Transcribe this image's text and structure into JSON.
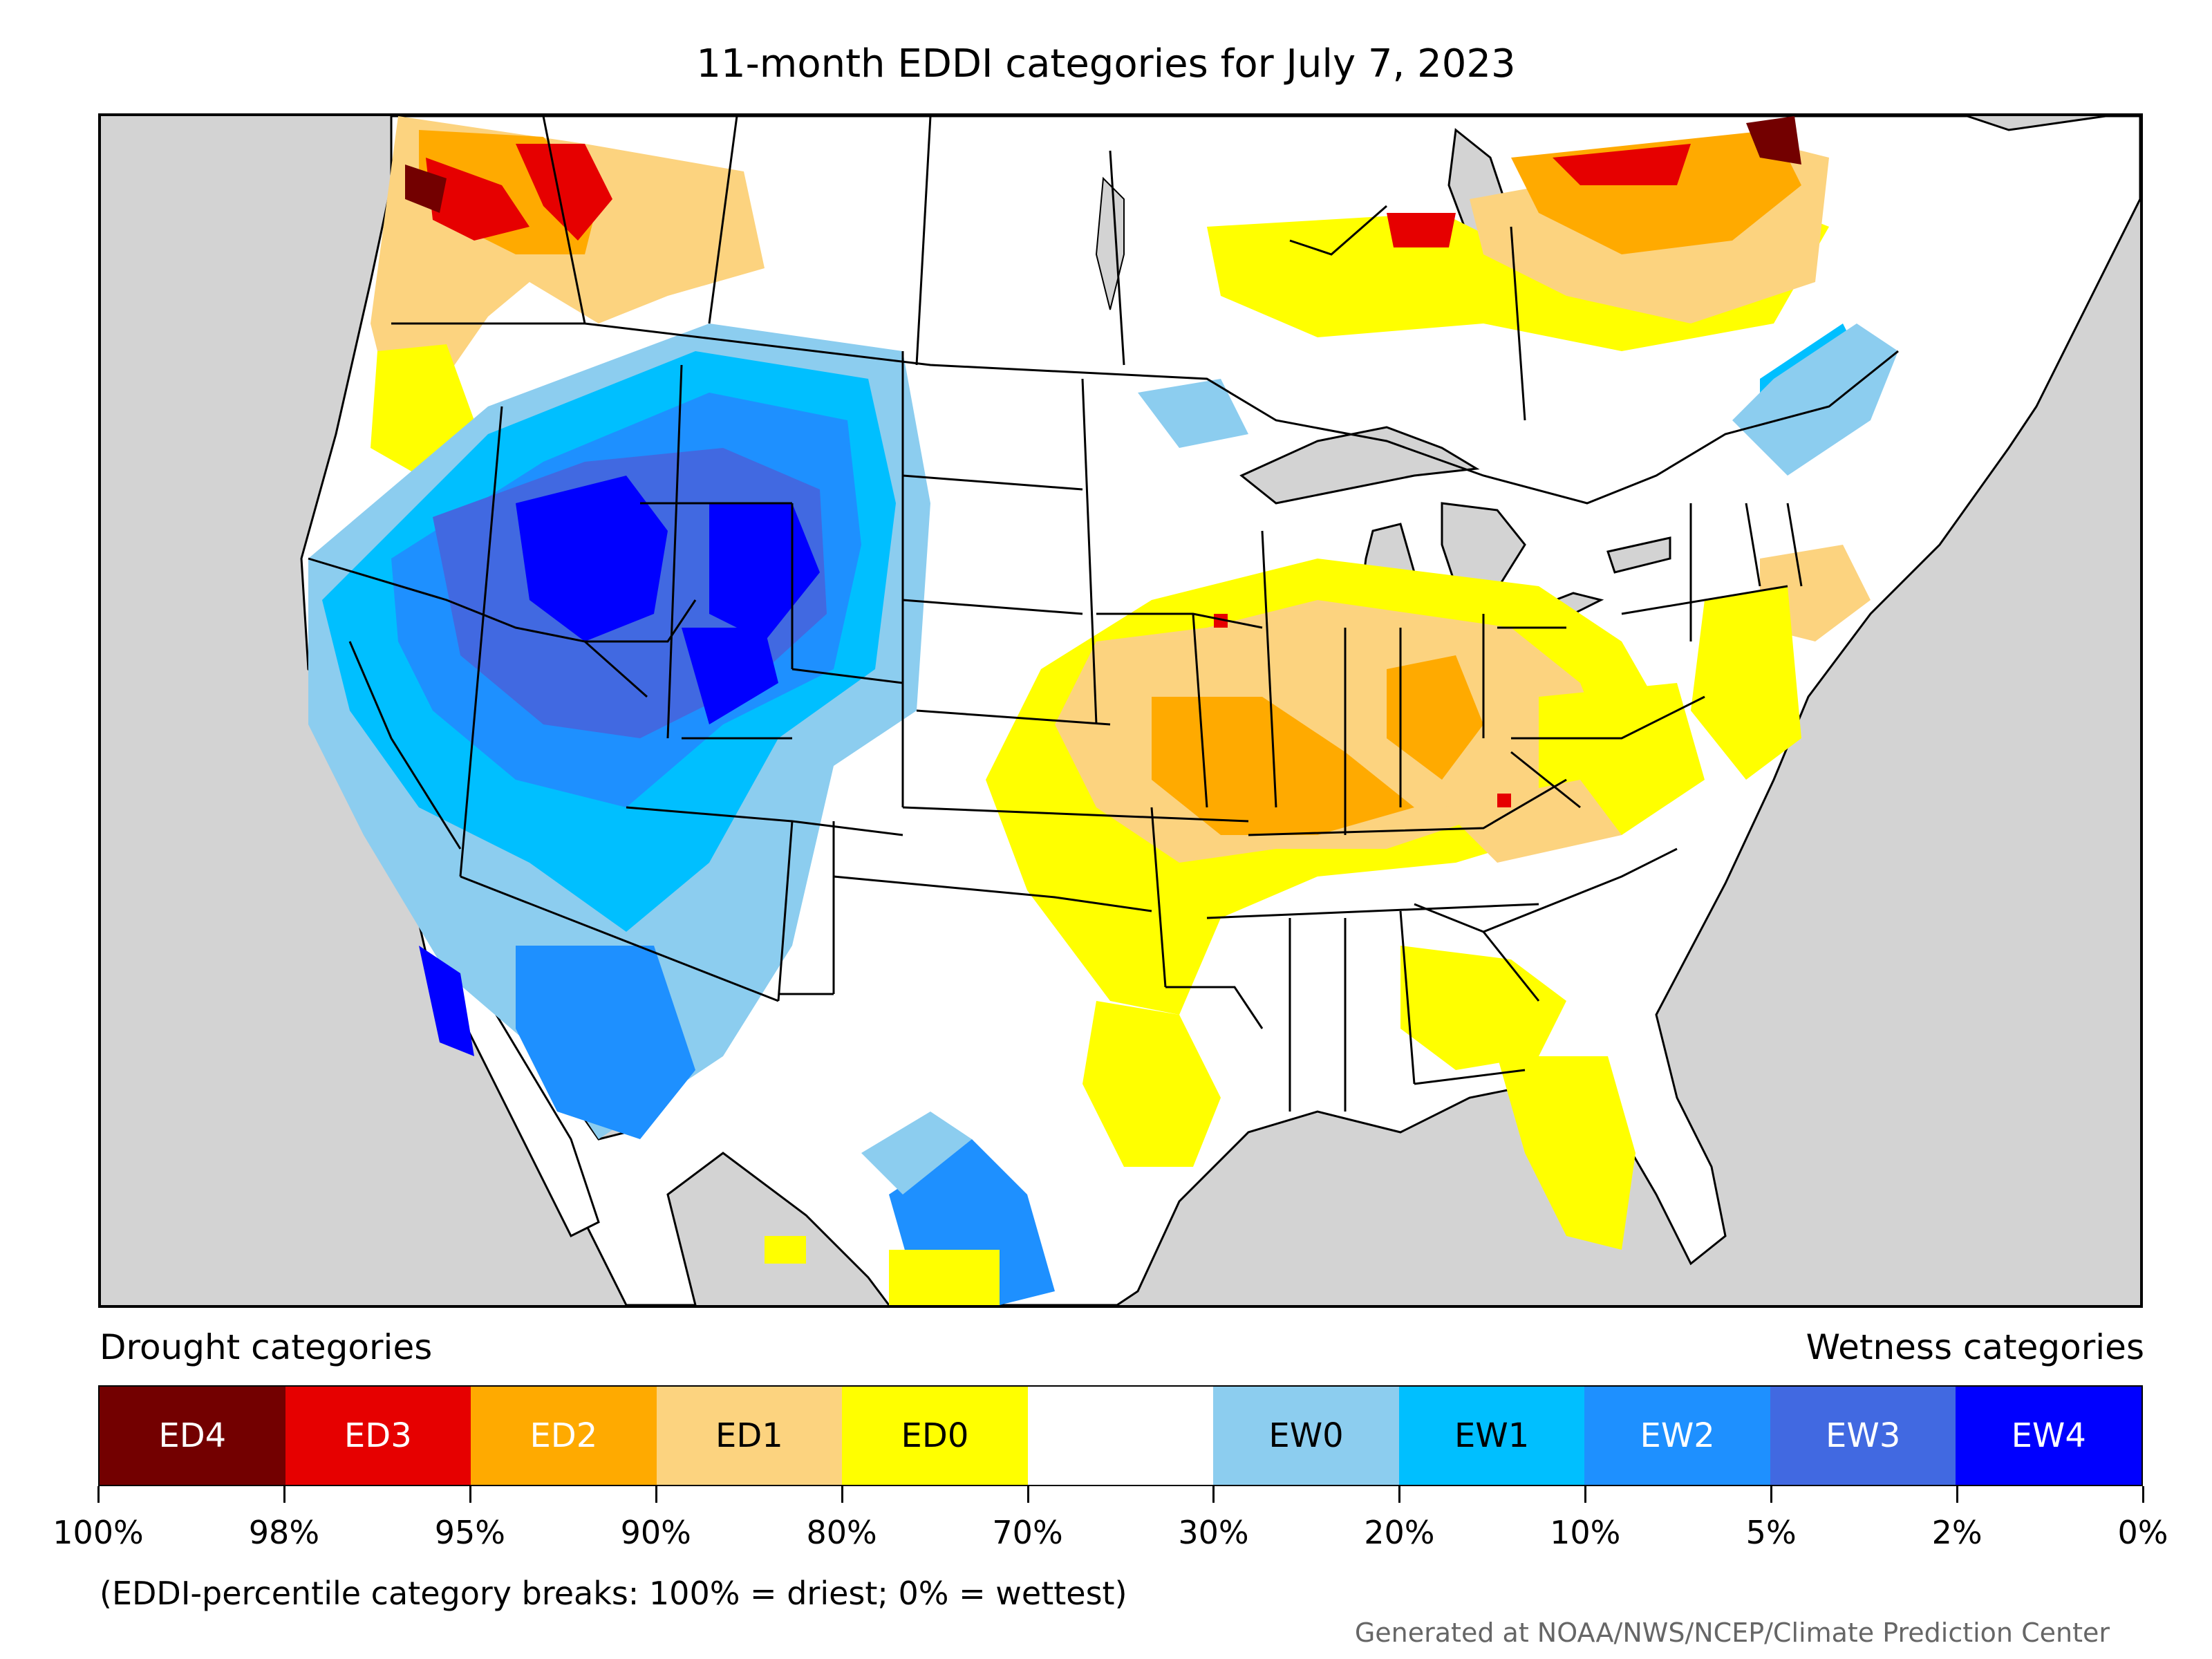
{
  "title": "11-month EDDI categories for July 7, 2023",
  "legend": {
    "drought_heading": "Drought categories",
    "wetness_heading": "Wetness categories",
    "categories": [
      {
        "label": "ED4",
        "color": "#730000",
        "text_color": "#ffffff"
      },
      {
        "label": "ED3",
        "color": "#e60000",
        "text_color": "#ffffff"
      },
      {
        "label": "ED2",
        "color": "#ffaa00",
        "text_color": "#ffffff"
      },
      {
        "label": "ED1",
        "color": "#fcd37f",
        "text_color": "#000000"
      },
      {
        "label": "ED0",
        "color": "#ffff00",
        "text_color": "#000000"
      },
      {
        "label": "",
        "color": "#ffffff",
        "text_color": "#000000"
      },
      {
        "label": "EW0",
        "color": "#8ccdef",
        "text_color": "#000000"
      },
      {
        "label": "EW1",
        "color": "#00bfff",
        "text_color": "#000000"
      },
      {
        "label": "EW2",
        "color": "#1e90ff",
        "text_color": "#ffffff"
      },
      {
        "label": "EW3",
        "color": "#4169e1",
        "text_color": "#ffffff"
      },
      {
        "label": "EW4",
        "color": "#0000ff",
        "text_color": "#ffffff"
      }
    ],
    "tick_labels": [
      "100%",
      "98%",
      "95%",
      "90%",
      "80%",
      "70%",
      "30%",
      "20%",
      "10%",
      "5%",
      "2%",
      "0%"
    ]
  },
  "note": "(EDDI-percentile category breaks: 100% = driest; 0% = wettest)",
  "credit": "Generated at NOAA/NWS/NCEP/Climate Prediction Center",
  "colors": {
    "background_ocean": "#d3d3d3",
    "land": "#ffffff",
    "boundaries": "#000000"
  }
}
